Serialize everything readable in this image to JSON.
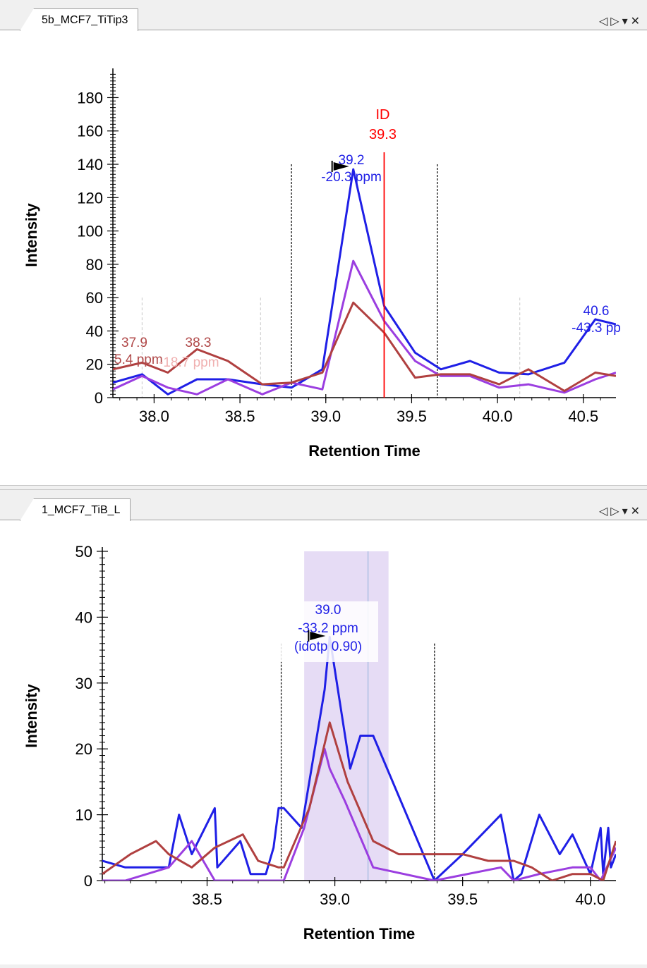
{
  "panels": [
    {
      "tab_label": "5b_MCF7_TiTip3",
      "controls": {
        "prev": "◁",
        "next": "▷",
        "menu": "▾",
        "close": "✕"
      }
    },
    {
      "tab_label": "1_MCF7_TiB_L",
      "controls": {
        "prev": "◁",
        "next": "▷",
        "menu": "▾",
        "close": "✕"
      }
    }
  ],
  "colors": {
    "blue": "#1f1fe6",
    "brown": "#b04040",
    "purple": "#9b3ee0",
    "id_line": "#ff0000",
    "highlight": "#e6dcf5",
    "annot_brown": "#b04848",
    "annot_faint": "#f0b0b0"
  },
  "chart_data": [
    {
      "type": "line",
      "title": "",
      "xlabel": "Retention Time",
      "ylabel": "Intensity",
      "xlim": [
        37.76,
        40.69
      ],
      "ylim": [
        0,
        195
      ],
      "xticks": [
        "38.0",
        "38.5",
        "39.0",
        "39.5",
        "40.0",
        "40.5"
      ],
      "yticks": [
        "0",
        "20",
        "40",
        "60",
        "80",
        "100",
        "120",
        "140",
        "160",
        "180"
      ],
      "series": [
        {
          "color": "blue",
          "x": [
            37.76,
            37.93,
            38.08,
            38.25,
            38.43,
            38.63,
            38.8,
            38.98,
            39.16,
            39.34,
            39.52,
            39.67,
            39.84,
            40.01,
            40.18,
            40.39,
            40.57,
            40.69
          ],
          "y": [
            9,
            14,
            2,
            11,
            11,
            8,
            6,
            17,
            137,
            55,
            27,
            17,
            22,
            15,
            14,
            21,
            47,
            44
          ]
        },
        {
          "color": "purple",
          "x": [
            37.76,
            37.93,
            38.08,
            38.25,
            38.43,
            38.63,
            38.8,
            38.98,
            39.16,
            39.34,
            39.52,
            39.67,
            39.84,
            40.01,
            40.18,
            40.39,
            40.57,
            40.69
          ],
          "y": [
            5,
            13,
            6,
            2,
            11,
            2,
            9,
            5,
            82,
            46,
            22,
            13,
            13,
            6,
            8,
            3,
            11,
            15
          ]
        },
        {
          "color": "brown",
          "x": [
            37.76,
            37.93,
            38.08,
            38.25,
            38.43,
            38.63,
            38.8,
            38.98,
            39.16,
            39.34,
            39.52,
            39.67,
            39.84,
            40.01,
            40.18,
            40.39,
            40.57,
            40.69
          ],
          "y": [
            17,
            21,
            15,
            29,
            22,
            8,
            9,
            15,
            57,
            39,
            12,
            14,
            14,
            8,
            17,
            4,
            15,
            13
          ]
        }
      ],
      "boundaries": [
        38.8,
        39.65
      ],
      "faint_markers": [
        37.93,
        38.62,
        40.13
      ],
      "id_line": {
        "x": 39.34,
        "label": "ID",
        "value": "39.3"
      },
      "annotations": [
        {
          "color": "blue",
          "lines": [
            "39.2",
            "-20.3 ppm"
          ],
          "x": 39.16,
          "y": 137
        },
        {
          "color": "blue",
          "lines": [
            "40.6",
            "-43.3 pp"
          ],
          "x": 40.57,
          "y": 47
        },
        {
          "color": "brown",
          "lines": [
            "38.3"
          ],
          "x": 38.25,
          "y": 29
        },
        {
          "color": "brown",
          "lines": [
            "37.9",
            "5.4 ppm"
          ],
          "x": 37.93,
          "y": 21
        },
        {
          "color": "faint",
          "lines": [
            "-18.7 ppm"
          ],
          "x": 38.25,
          "y": 29
        }
      ]
    },
    {
      "type": "line",
      "title": "",
      "xlabel": "Retention Time",
      "ylabel": "Intensity",
      "xlim": [
        38.09,
        40.1
      ],
      "ylim": [
        0,
        50
      ],
      "xticks": [
        "38.5",
        "39.0",
        "39.5",
        "40.0"
      ],
      "yticks": [
        "0",
        "10",
        "20",
        "30",
        "40",
        "50"
      ],
      "highlight_range": [
        38.88,
        39.21
      ],
      "highlight_center": 39.13,
      "boundaries": [
        38.79,
        39.39
      ],
      "series": [
        {
          "color": "blue",
          "x": [
            38.09,
            38.18,
            38.35,
            38.39,
            38.44,
            38.53,
            38.54,
            38.63,
            38.67,
            38.73,
            38.76,
            38.78,
            38.8,
            38.87,
            38.96,
            38.98,
            39.06,
            39.1,
            39.15,
            39.39,
            39.5,
            39.6,
            39.65,
            39.7,
            39.73,
            39.8,
            39.88,
            39.93,
            40.0,
            40.04,
            40.05,
            40.07,
            40.08,
            40.1
          ],
          "y": [
            3,
            2,
            2,
            10,
            4,
            11,
            2,
            6,
            1,
            1,
            5,
            11,
            11,
            8,
            29,
            37,
            17,
            22,
            22,
            0,
            4,
            8,
            10,
            0,
            1,
            10,
            4,
            7,
            1,
            8,
            1,
            8,
            2,
            4
          ]
        },
        {
          "color": "purple",
          "x": [
            38.09,
            38.18,
            38.35,
            38.44,
            38.53,
            38.65,
            38.77,
            38.8,
            38.88,
            38.96,
            38.98,
            39.04,
            39.15,
            39.39,
            39.65,
            39.7,
            39.8,
            39.93,
            40.0,
            40.04,
            40.1
          ],
          "y": [
            0,
            0,
            2,
            6,
            0,
            0,
            0,
            0,
            8,
            20,
            17,
            12,
            2,
            0,
            2,
            0,
            1,
            2,
            2,
            0,
            5
          ]
        },
        {
          "color": "brown",
          "x": [
            38.09,
            38.2,
            38.3,
            38.35,
            38.44,
            38.53,
            38.64,
            38.7,
            38.78,
            38.8,
            38.9,
            38.98,
            39.05,
            39.15,
            39.25,
            39.39,
            39.5,
            39.6,
            39.7,
            39.77,
            39.85,
            39.93,
            40.0,
            40.05,
            40.1
          ],
          "y": [
            1,
            4,
            6,
            4,
            2,
            5,
            7,
            3,
            2,
            2,
            11,
            24,
            15,
            6,
            4,
            4,
            4,
            3,
            3,
            2,
            0,
            1,
            1,
            0,
            6
          ]
        }
      ],
      "annotations": [
        {
          "color": "blue",
          "lines": [
            "39.0",
            "-33.2 ppm",
            "(idotp 0.90)"
          ],
          "x": 38.98,
          "y": 37
        }
      ]
    }
  ]
}
